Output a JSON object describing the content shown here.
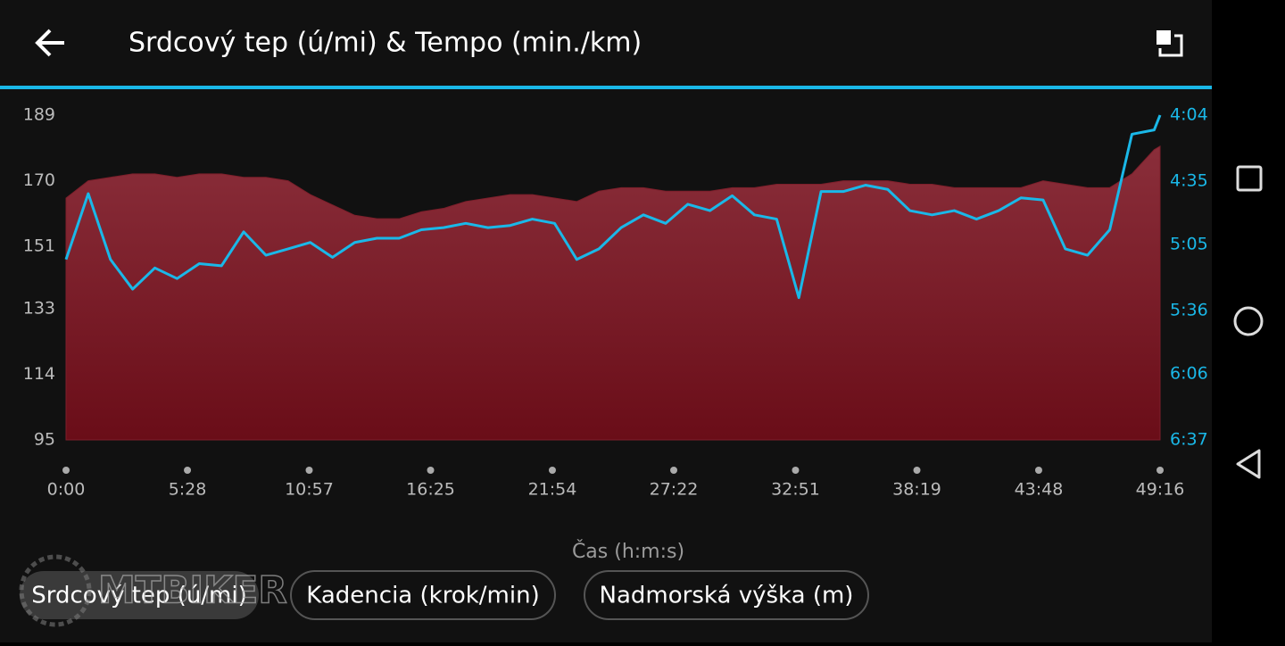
{
  "header": {
    "title": "Srdcový tep (ú/mi) & Tempo (min./km)"
  },
  "chart_data": {
    "type": "line",
    "xlabel": "Čas (h:m:s)",
    "x": [
      0,
      60,
      120,
      180,
      240,
      300,
      360,
      420,
      480,
      540,
      600,
      660,
      720,
      780,
      840,
      900,
      960,
      1020,
      1080,
      1140,
      1200,
      1260,
      1320,
      1380,
      1440,
      1500,
      1560,
      1620,
      1680,
      1740,
      1800,
      1860,
      1920,
      1980,
      2040,
      2100,
      2160,
      2220,
      2280,
      2340,
      2400,
      2460,
      2520,
      2580,
      2640,
      2700,
      2760,
      2820,
      2880,
      2940,
      2956
    ],
    "series": [
      {
        "type": "area",
        "color": "#7d1f2b",
        "values": [
          165,
          170,
          171,
          172,
          172,
          171,
          172,
          172,
          171,
          171,
          170,
          166,
          163,
          160,
          159,
          159,
          161,
          162,
          164,
          165,
          166,
          166,
          165,
          164,
          167,
          168,
          168,
          167,
          167,
          167,
          168,
          168,
          169,
          169,
          169,
          170,
          170,
          170,
          169,
          169,
          168,
          168,
          168,
          168,
          170,
          169,
          168,
          168,
          172,
          179,
          180
        ]
      },
      {
        "type": "line",
        "axis": "y2",
        "color": "#1ab8e8",
        "values": [
          312,
          281,
          312,
          326,
          316,
          321,
          314,
          315,
          299,
          310,
          307,
          304,
          311,
          304,
          302,
          302,
          298,
          297,
          295,
          297,
          296,
          293,
          295,
          312,
          307,
          297,
          291,
          295,
          286,
          289,
          282,
          291,
          293,
          330,
          280,
          280,
          277,
          279,
          289,
          291,
          289,
          293,
          289,
          283,
          284,
          307,
          310,
          298,
          253,
          251,
          244
        ]
      }
    ],
    "xlim": [
      0,
      2956
    ],
    "xticks": [
      {
        "value": 0,
        "label": "0:00"
      },
      {
        "value": 328,
        "label": "5:28"
      },
      {
        "value": 657,
        "label": "10:57"
      },
      {
        "value": 985,
        "label": "16:25"
      },
      {
        "value": 1314,
        "label": "21:54"
      },
      {
        "value": 1642,
        "label": "27:22"
      },
      {
        "value": 1971,
        "label": "32:51"
      },
      {
        "value": 2299,
        "label": "38:19"
      },
      {
        "value": 2628,
        "label": "43:48"
      },
      {
        "value": 2956,
        "label": "49:16"
      }
    ],
    "ylim": [
      95,
      189
    ],
    "yticks": [
      95,
      114,
      133,
      151,
      170,
      189
    ],
    "y2lim": [
      397,
      244
    ],
    "y2ticks": [
      {
        "value": 244,
        "label": "4:04"
      },
      {
        "value": 275,
        "label": "4:35"
      },
      {
        "value": 305,
        "label": "5:05"
      },
      {
        "value": 336,
        "label": "5:36"
      },
      {
        "value": 366,
        "label": "6:06"
      },
      {
        "value": 397,
        "label": "6:37"
      }
    ]
  },
  "buttons": [
    "Srdcový tep (ú/mi)",
    "Kadencia (krok/min)",
    "Nadmorská výška (m)"
  ],
  "watermark": "MTBIKER"
}
